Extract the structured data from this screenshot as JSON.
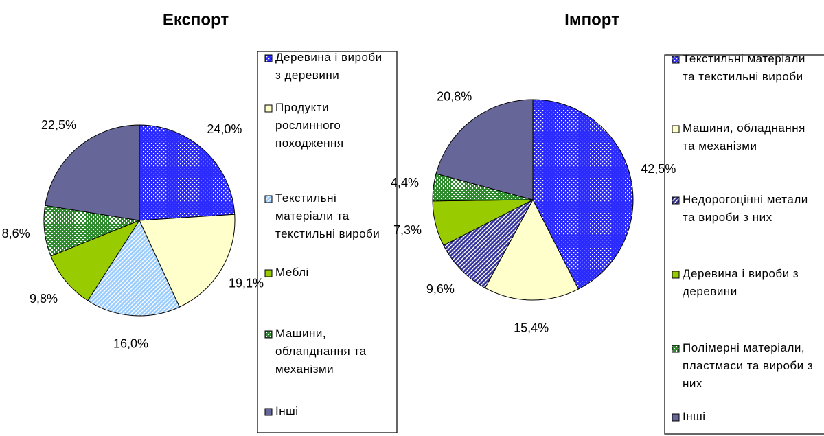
{
  "chart_data": [
    {
      "type": "pie",
      "title": "Експорт",
      "categories": [
        "Деревина і вироби з деревини",
        "Продукти рослинного походження",
        "Текстильні матеріали та текстильні вироби",
        "Меблі",
        "Машини, облапднання та механізми",
        "Інші"
      ],
      "values": [
        24.0,
        19.1,
        16.0,
        9.8,
        8.6,
        22.5
      ],
      "value_labels": [
        "24,0%",
        "19,1%",
        "16,0%",
        "9,8%",
        "8,6%",
        "22,5%"
      ],
      "colors": [
        "#2b2bff",
        "#ffffcc",
        "#99ccff",
        "#99cc00",
        "#2e8b2e",
        "#666699"
      ],
      "patterns": [
        "dots",
        "none",
        "diag",
        "none",
        "checks",
        "none"
      ]
    },
    {
      "type": "pie",
      "title": "Імпорт",
      "categories": [
        "Текстильні матеріали та текстильні вироби",
        "Машини, обладнання та механізми",
        "Недорогоцінні метали та вироби з них",
        "Деревина і вироби з деревини",
        "Полімерні матеріали, пластмаси та вироби з них",
        "Інші"
      ],
      "values": [
        42.5,
        15.4,
        9.6,
        7.3,
        4.4,
        20.8
      ],
      "value_labels": [
        "42,5%",
        "15,4%",
        "9,6%",
        "7,3%",
        "4,4%",
        "20,8%"
      ],
      "colors": [
        "#2b2bff",
        "#ffffcc",
        "#333399",
        "#99cc00",
        "#2e8b2e",
        "#666699"
      ],
      "patterns": [
        "dots",
        "none",
        "diag",
        "none",
        "checks",
        "none"
      ]
    }
  ]
}
